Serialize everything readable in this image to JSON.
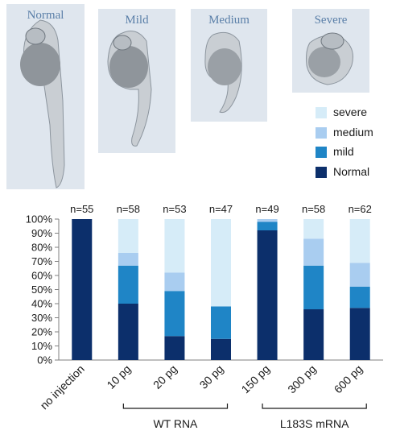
{
  "panels": {
    "normal": "Normal",
    "mild": "Mild",
    "medium": "Medium",
    "severe": "Severe"
  },
  "colors": {
    "severe": "#d6ecf8",
    "medium": "#a9cdf0",
    "mild": "#1f85c6",
    "normal": "#0c2f6b"
  },
  "legend": [
    {
      "label": "severe",
      "color": "#d6ecf8"
    },
    {
      "label": "medium",
      "color": "#a9cdf0"
    },
    {
      "label": "mild",
      "color": "#1f85c6"
    },
    {
      "label": "Normal",
      "color": "#0c2f6b"
    }
  ],
  "chart_data": {
    "type": "bar",
    "stacked": true,
    "percent": true,
    "categories": [
      "no injection",
      "10 pg",
      "20 pg",
      "30 pg",
      "150 pg",
      "300 pg",
      "600 pg"
    ],
    "counts": [
      "n=55",
      "n=58",
      "n=53",
      "n=47",
      "n=49",
      "n=58",
      "n=62"
    ],
    "series": [
      {
        "name": "Normal",
        "values": [
          100,
          40,
          17,
          15,
          92,
          36,
          37
        ]
      },
      {
        "name": "mild",
        "values": [
          0,
          27,
          32,
          23,
          6,
          31,
          15
        ]
      },
      {
        "name": "medium",
        "values": [
          0,
          9,
          13,
          0,
          2,
          19,
          17
        ]
      },
      {
        "name": "severe",
        "values": [
          0,
          24,
          38,
          62,
          0,
          14,
          31
        ]
      }
    ],
    "ylim": [
      0,
      100
    ],
    "yticks": [
      "0%",
      "10%",
      "20%",
      "30%",
      "40%",
      "50%",
      "60%",
      "70%",
      "80%",
      "90%",
      "100%"
    ],
    "groups": [
      {
        "label": "WT RNA",
        "from": 1,
        "to": 3
      },
      {
        "label": "L183S mRNA",
        "from": 4,
        "to": 6
      }
    ]
  }
}
